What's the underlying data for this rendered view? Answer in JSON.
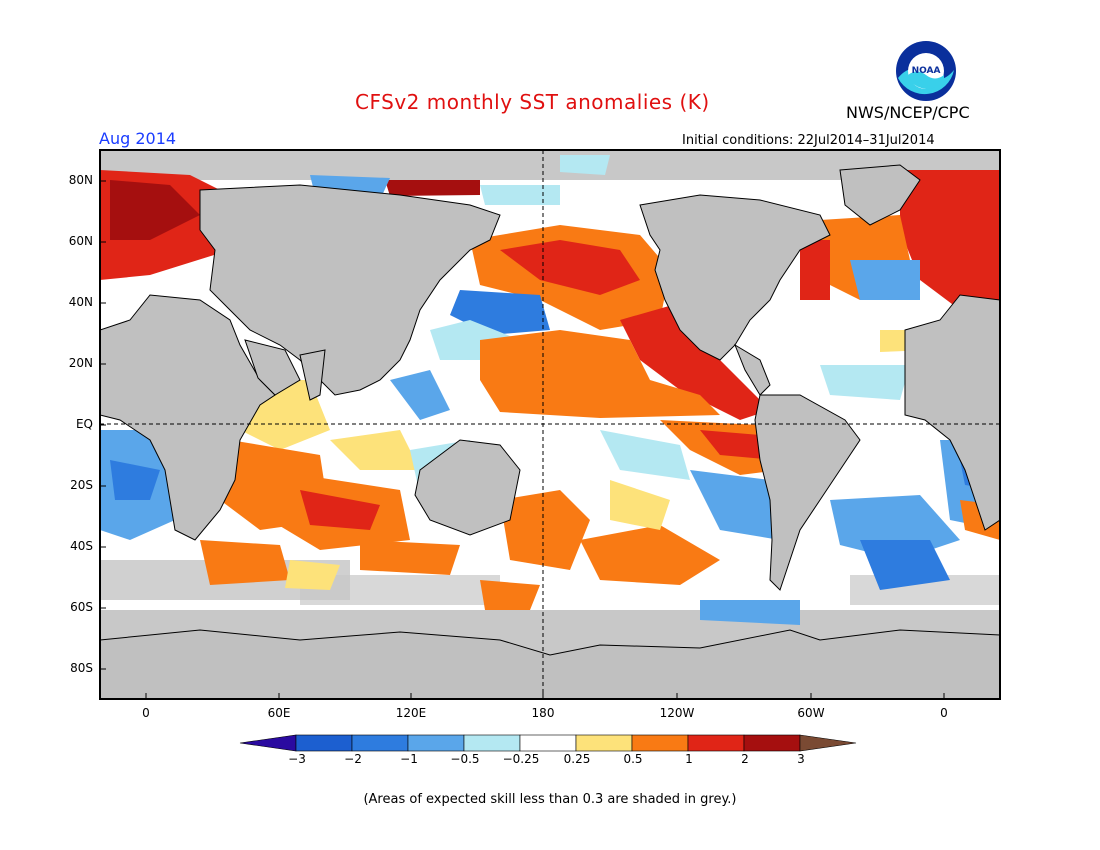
{
  "title": "CFSv2 monthly SST anomalies (K)",
  "month": "Aug 2014",
  "agency": "NWS/NCEP/CPC",
  "initial_conditions": "Initial conditions: 22Jul2014–31Jul2014",
  "logo": {
    "text": "NOAA",
    "icon": "noaa-logo-icon"
  },
  "lat_labels": [
    "80N",
    "60N",
    "40N",
    "20N",
    "EQ",
    "20S",
    "40S",
    "60S",
    "80S"
  ],
  "lon_labels": [
    "0",
    "60E",
    "120E",
    "180",
    "120W",
    "60W",
    "0"
  ],
  "colorbar": {
    "tick_labels": [
      "−3",
      "−2",
      "−1",
      "−0.5",
      "−0.25",
      "0.25",
      "0.5",
      "1",
      "2",
      "3"
    ],
    "colors": [
      "#2a0aa0",
      "#1c5fd0",
      "#2e7cdf",
      "#5aa6ea",
      "#b4e8f2",
      "#ffffff",
      "#fde27a",
      "#f97a14",
      "#e02517",
      "#a50f0f",
      "#7a4a33"
    ]
  },
  "colors": {
    "land": "#c0c0c0",
    "ocean_neutral": "#ffffff",
    "low_skill_grey": "#c8c8c8",
    "title": "#e01010",
    "month": "#1a3cff"
  },
  "footnote": "(Areas of expected skill less than 0.3 are shaded in grey.)"
}
